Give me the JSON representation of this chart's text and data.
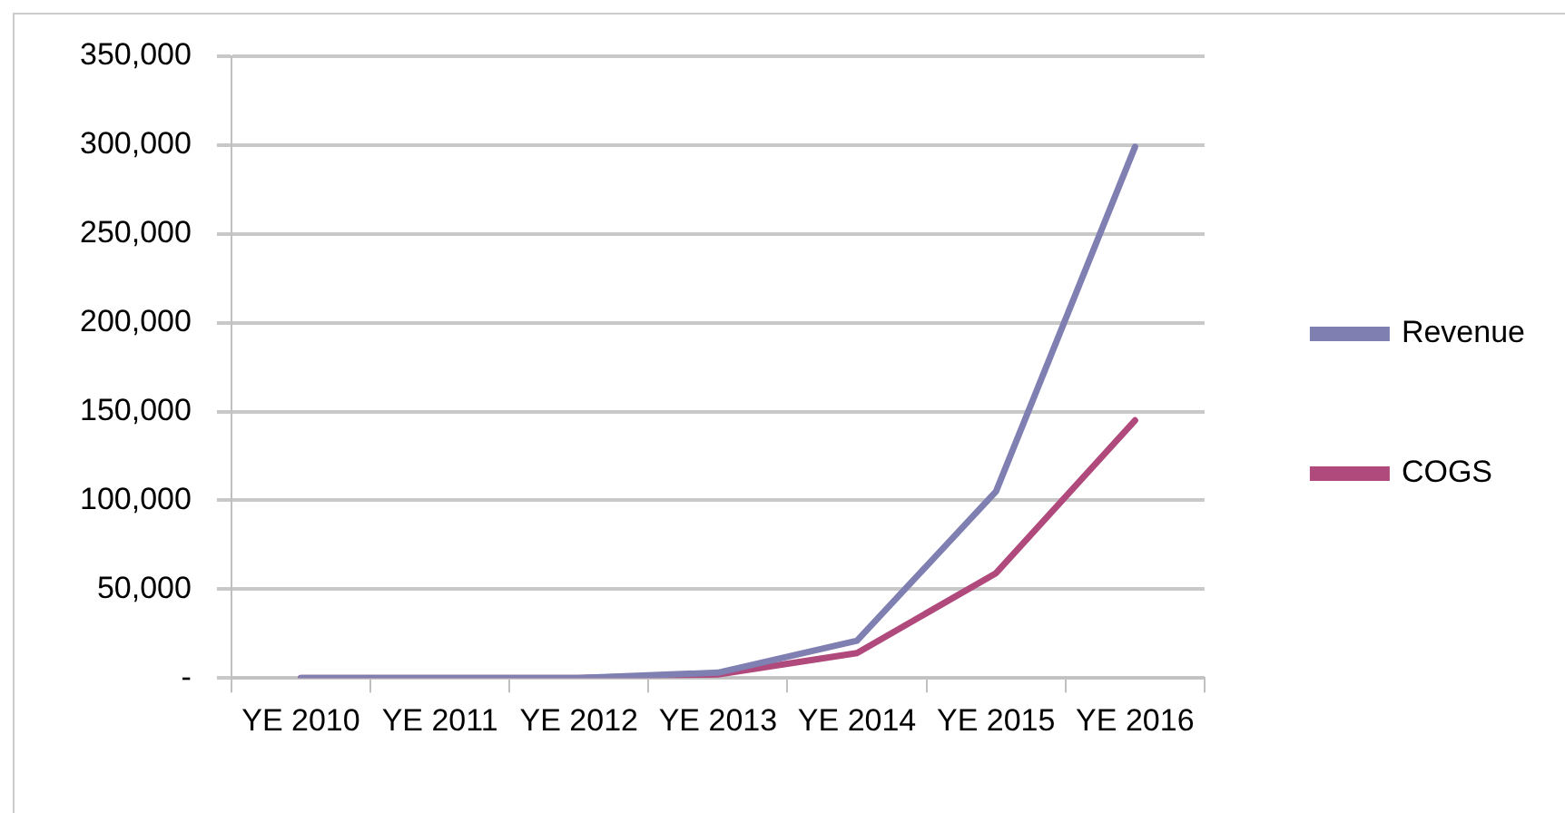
{
  "chart_data": {
    "type": "line",
    "categories": [
      "YE 2010",
      "YE 2011",
      "YE 2012",
      "YE 2013",
      "YE 2014",
      "YE 2015",
      "YE 2016"
    ],
    "series": [
      {
        "name": "Revenue",
        "color": "#7f7fb2",
        "values": [
          0,
          0,
          0,
          3000,
          21000,
          105000,
          299000
        ]
      },
      {
        "name": "COGS",
        "color": "#b0497c",
        "values": [
          0,
          0,
          0,
          2000,
          14000,
          59000,
          145000
        ]
      }
    ],
    "ylim": [
      0,
      350000
    ],
    "yticks": [
      {
        "value": 0,
        "label": "-"
      },
      {
        "value": 50000,
        "label": "50,000"
      },
      {
        "value": 100000,
        "label": "100,000"
      },
      {
        "value": 150000,
        "label": "150,000"
      },
      {
        "value": 200000,
        "label": "200,000"
      },
      {
        "value": 250000,
        "label": "250,000"
      },
      {
        "value": 300000,
        "label": "300,000"
      },
      {
        "value": 350000,
        "label": "350,000"
      }
    ],
    "grid": "y",
    "legend": "right",
    "marker": "none",
    "line_style": "solid"
  }
}
